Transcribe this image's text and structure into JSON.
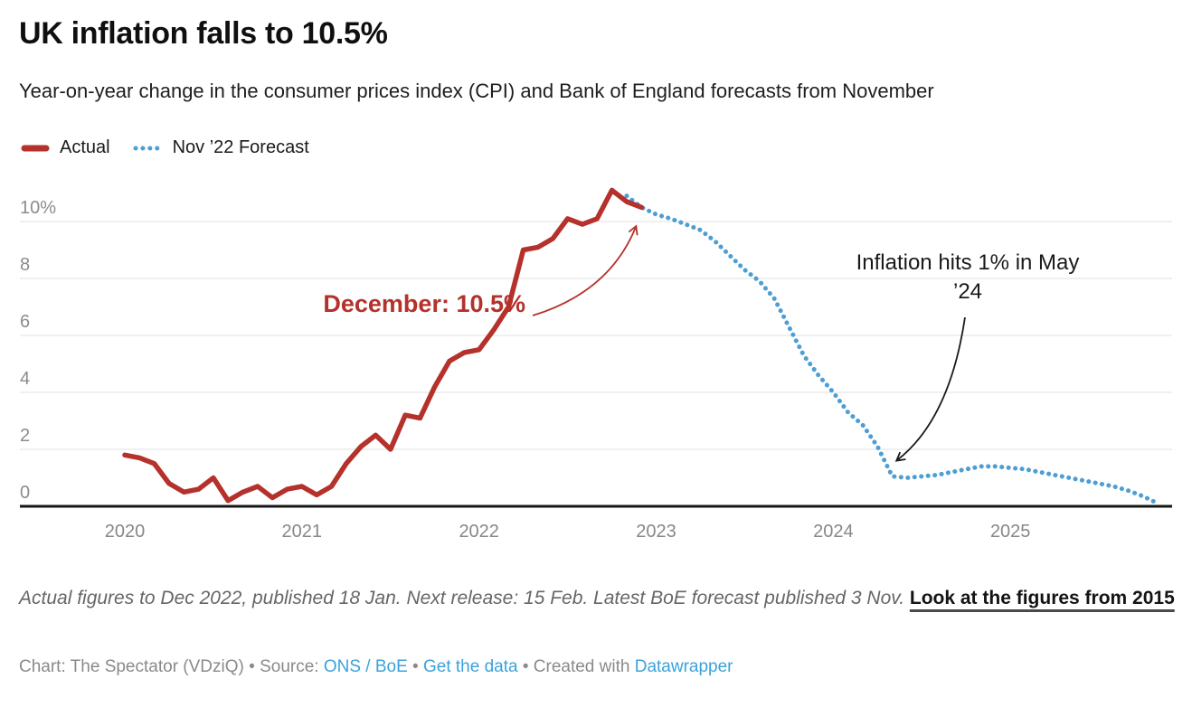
{
  "header": {
    "title": "UK inflation falls to 10.5%",
    "subtitle": "Year-on-year change in the consumer prices index (CPI) and Bank of England forecasts from November"
  },
  "colors": {
    "actual_red": "#b5312b",
    "forecast_blue": "#4d9ed4",
    "link_blue": "#3aa2db",
    "grid_gray": "#e2e2e2",
    "axis_black": "#161616",
    "tick_gray": "#8c8c8c"
  },
  "chart_data": {
    "type": "line",
    "title": "UK inflation falls to 10.5%",
    "xlabel": "",
    "ylabel": "",
    "unit": "%",
    "grid": "horizontal-gridlines",
    "legend_position": "top-left",
    "x_axis": {
      "tick_labels": [
        "2020",
        "2021",
        "2022",
        "2023",
        "2024",
        "2025"
      ],
      "range_months": [
        "2020-01",
        "2025-11"
      ]
    },
    "y_axis": {
      "ticks": [
        0,
        2,
        4,
        6,
        8,
        10
      ],
      "tick_labels": [
        "0",
        "2",
        "4",
        "6",
        "8",
        "10%"
      ],
      "ylim": [
        -0.6,
        11.7
      ]
    },
    "series": [
      {
        "name": "Actual",
        "color": "#b5312b",
        "line_style": "solid",
        "frequency": "monthly",
        "start": "2020-01",
        "values": [
          1.8,
          1.7,
          1.5,
          0.8,
          0.5,
          0.6,
          1.0,
          0.2,
          0.5,
          0.7,
          0.3,
          0.6,
          0.7,
          0.4,
          0.7,
          1.5,
          2.1,
          2.5,
          2.0,
          3.2,
          3.1,
          4.2,
          5.1,
          5.4,
          5.5,
          6.2,
          7.0,
          9.0,
          9.1,
          9.4,
          10.1,
          9.9,
          10.1,
          11.1,
          10.7,
          10.5
        ]
      },
      {
        "name": "Nov ’22 Forecast",
        "color": "#4d9ed4",
        "line_style": "dotted",
        "frequency": "monthly",
        "start": "2022-11",
        "values": [
          10.9,
          10.5,
          10.25,
          10.1,
          9.9,
          9.7,
          9.3,
          8.8,
          8.3,
          7.9,
          7.3,
          6.3,
          5.3,
          4.6,
          4.0,
          3.3,
          2.85,
          2.1,
          1.05,
          1.0,
          1.05,
          1.1,
          1.2,
          1.3,
          1.4,
          1.4,
          1.35,
          1.3,
          1.2,
          1.1,
          1.0,
          0.9,
          0.8,
          0.7,
          0.55,
          0.35,
          0.1
        ]
      }
    ],
    "annotations": [
      {
        "text": "December: 10.5%",
        "color": "#b5312b",
        "bold": true,
        "points_to": {
          "month": "2022-12",
          "value": 10.5
        }
      },
      {
        "text": "Inflation hits 1% in May ’24",
        "lines": [
          "Inflation hits 1% in May",
          "’24"
        ],
        "color": "#1a1a1a",
        "bold": false,
        "points_to": {
          "month": "2024-05",
          "value": 1.0
        }
      }
    ]
  },
  "notes": {
    "text": "Actual figures to Dec 2022, published 18 Jan. Next release: 15 Feb. Latest BoE forecast published 3 Nov.",
    "link_label": "Look at the figures from 2015"
  },
  "byline": {
    "chart_credit": "Chart: The Spectator (VDziQ)",
    "bullet": "•",
    "source_label": "Source:",
    "source_link_label": "ONS / BoE",
    "get_data_label": "Get the data",
    "created_with_label": "Created with",
    "tool_label": "Datawrapper"
  }
}
